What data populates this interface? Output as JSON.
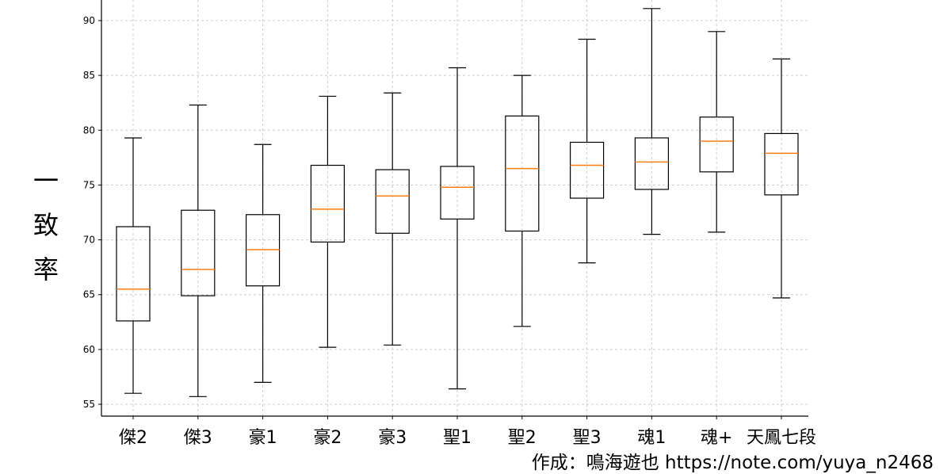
{
  "chart_data": {
    "type": "boxplot",
    "title": "",
    "xlabel": "",
    "ylabel": "一致率",
    "ylim": [
      54,
      92
    ],
    "yticks": [
      55,
      60,
      65,
      70,
      75,
      80,
      85,
      90
    ],
    "grid": true,
    "categories": [
      "傑2",
      "傑3",
      "豪1",
      "豪2",
      "豪3",
      "聖1",
      "聖2",
      "聖3",
      "魂1",
      "魂+",
      "天鳳七段"
    ],
    "boxes": [
      {
        "whislo": 56.0,
        "q1": 62.6,
        "med": 65.5,
        "q3": 71.2,
        "whishi": 79.3
      },
      {
        "whislo": 55.7,
        "q1": 64.9,
        "med": 67.3,
        "q3": 72.7,
        "whishi": 82.3
      },
      {
        "whislo": 57.0,
        "q1": 65.8,
        "med": 69.1,
        "q3": 72.3,
        "whishi": 78.7
      },
      {
        "whislo": 60.2,
        "q1": 69.8,
        "med": 72.8,
        "q3": 76.8,
        "whishi": 83.1
      },
      {
        "whislo": 60.4,
        "q1": 70.6,
        "med": 74.0,
        "q3": 76.4,
        "whishi": 83.4
      },
      {
        "whislo": 56.4,
        "q1": 71.9,
        "med": 74.8,
        "q3": 76.7,
        "whishi": 85.7
      },
      {
        "whislo": 62.1,
        "q1": 70.8,
        "med": 76.5,
        "q3": 81.3,
        "whishi": 85.0
      },
      {
        "whislo": 67.9,
        "q1": 73.8,
        "med": 76.8,
        "q3": 78.9,
        "whishi": 88.3
      },
      {
        "whislo": 70.5,
        "q1": 74.6,
        "med": 77.1,
        "q3": 79.3,
        "whishi": 91.1
      },
      {
        "whislo": 70.7,
        "q1": 76.2,
        "med": 79.0,
        "q3": 81.2,
        "whishi": 89.0
      },
      {
        "whislo": 64.7,
        "q1": 74.1,
        "med": 77.9,
        "q3": 79.7,
        "whishi": 86.5
      }
    ],
    "colors": {
      "box": "#000000",
      "median": "#ff7f0e",
      "grid": "#cccccc"
    }
  },
  "ylabel_chars": [
    "一",
    "致",
    "率"
  ],
  "credit": "作成：鳴海遊也 https://note.com/yuya_n2468"
}
